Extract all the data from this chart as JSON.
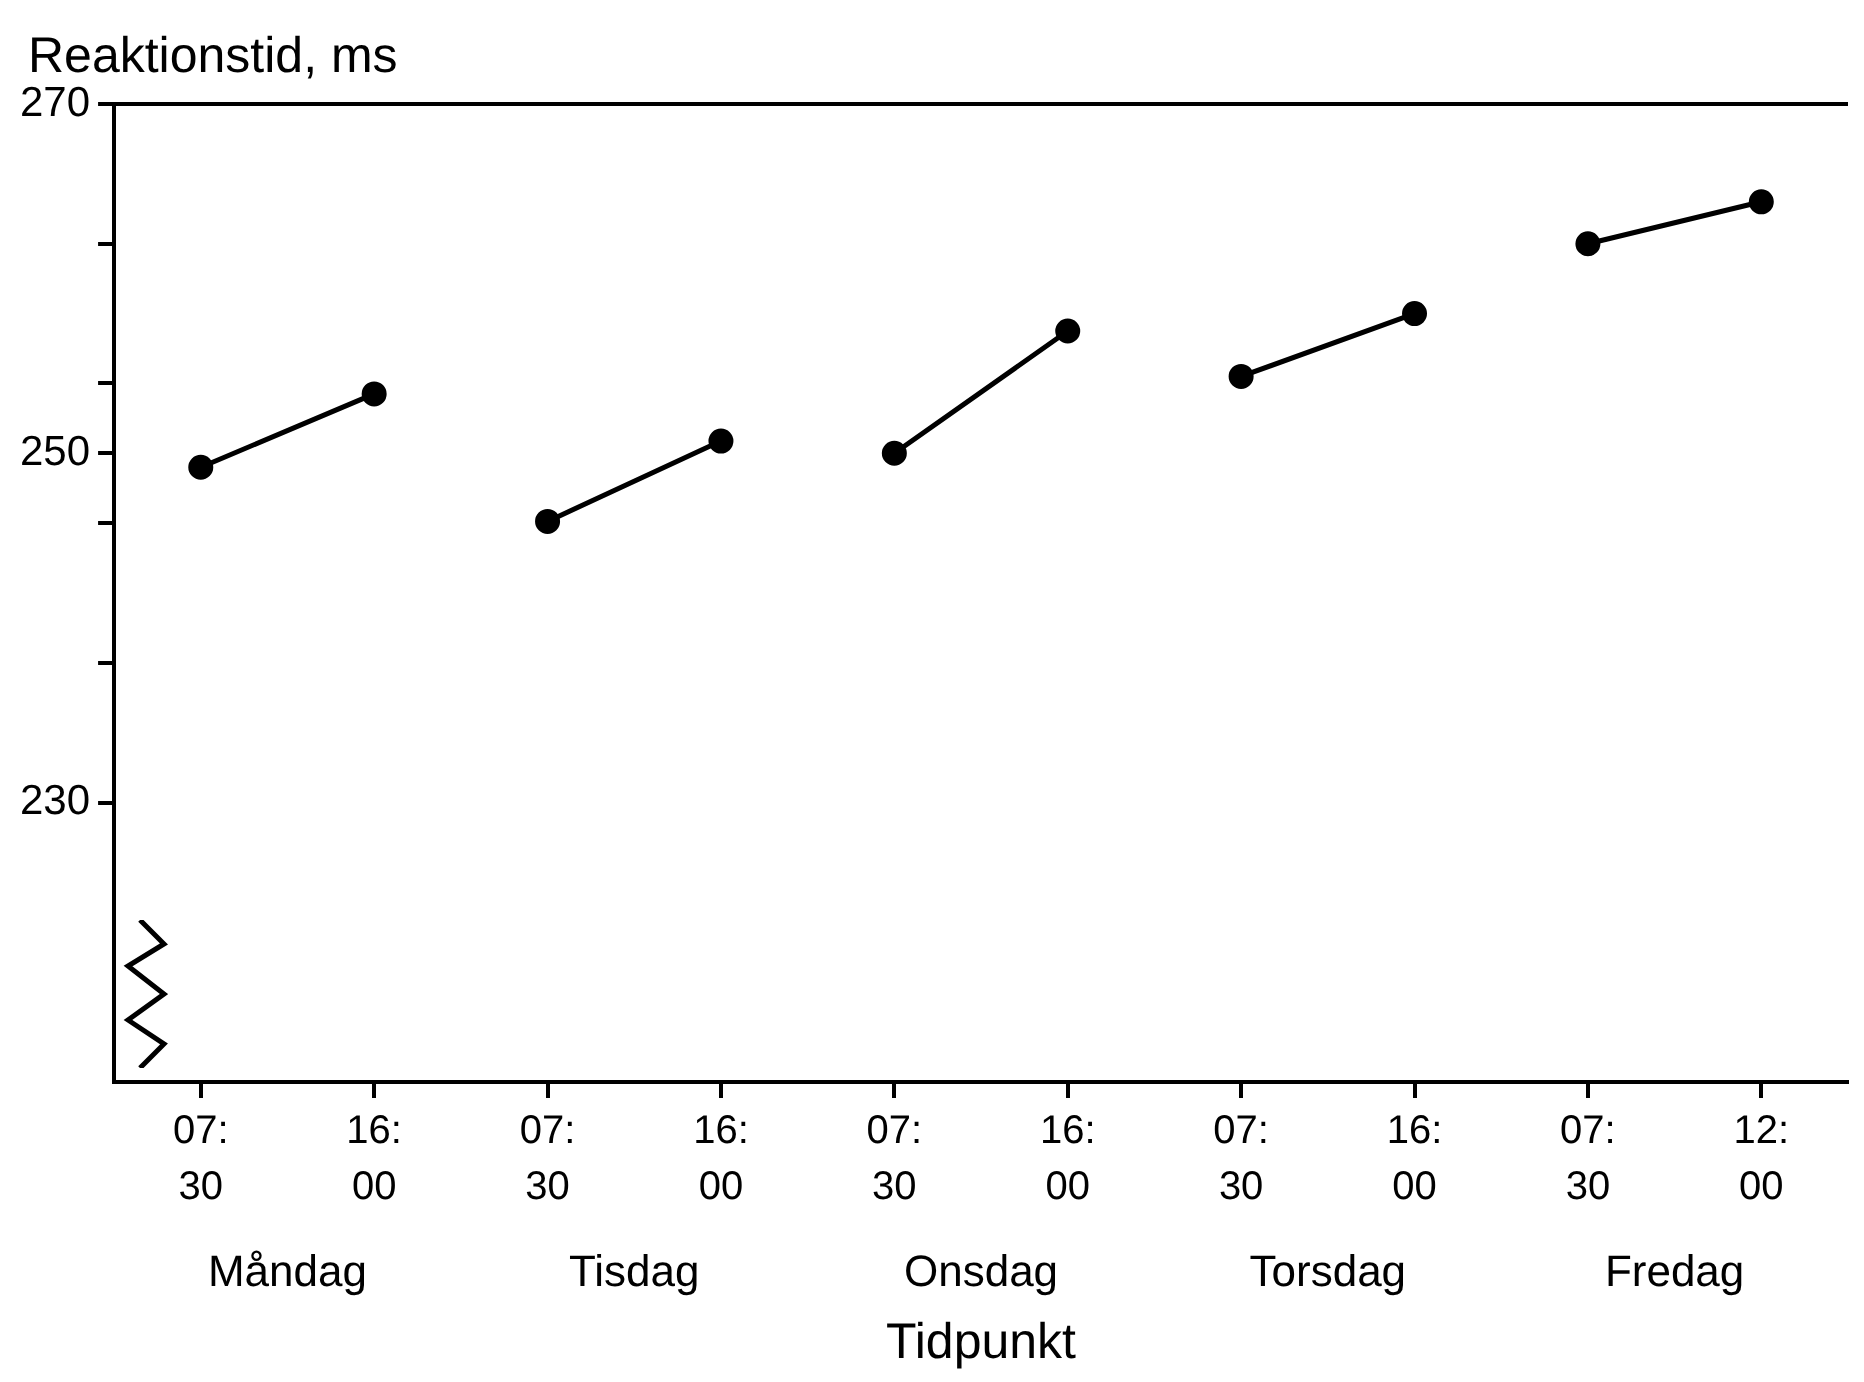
{
  "chart_data": {
    "type": "line",
    "ylabel": "Reaktionstid, ms",
    "xlabel": "Tidpunkt",
    "categories": [
      "07:30",
      "16:00",
      "07:30",
      "16:00",
      "07:30",
      "16:00",
      "07:30",
      "16:00",
      "07:30",
      "12:00"
    ],
    "series": [
      {
        "color": "#000000",
        "values": [
          249.2,
          253.4,
          null,
          null,
          null,
          null,
          null,
          null,
          null,
          null
        ]
      },
      {
        "color": "#000000",
        "values": [
          null,
          null,
          246.1,
          250.7,
          null,
          null,
          null,
          null,
          null,
          null
        ]
      },
      {
        "color": "#000000",
        "values": [
          null,
          null,
          null,
          null,
          250.0,
          257.0,
          null,
          null,
          null,
          null
        ]
      },
      {
        "color": "#000000",
        "values": [
          null,
          null,
          null,
          null,
          null,
          null,
          254.4,
          258.0,
          null,
          null
        ]
      },
      {
        "color": "#000000",
        "values": [
          null,
          null,
          null,
          null,
          null,
          null,
          null,
          null,
          262.0,
          264.4
        ]
      }
    ],
    "annotations": [
      "Måndag",
      "Tisdag",
      "Onsdag",
      "Torsdag",
      "Fredag"
    ],
    "ylim": [
      214,
      270
    ],
    "yticks": [
      270,
      {
        "value": 262,
        "label": null
      },
      {
        "value": 254,
        "label": null
      },
      250,
      {
        "value": 246,
        "label": null
      },
      {
        "value": 238,
        "label": null
      },
      230
    ],
    "grid": false,
    "legend": false,
    "marker": "circle",
    "line_style": "solid"
  }
}
